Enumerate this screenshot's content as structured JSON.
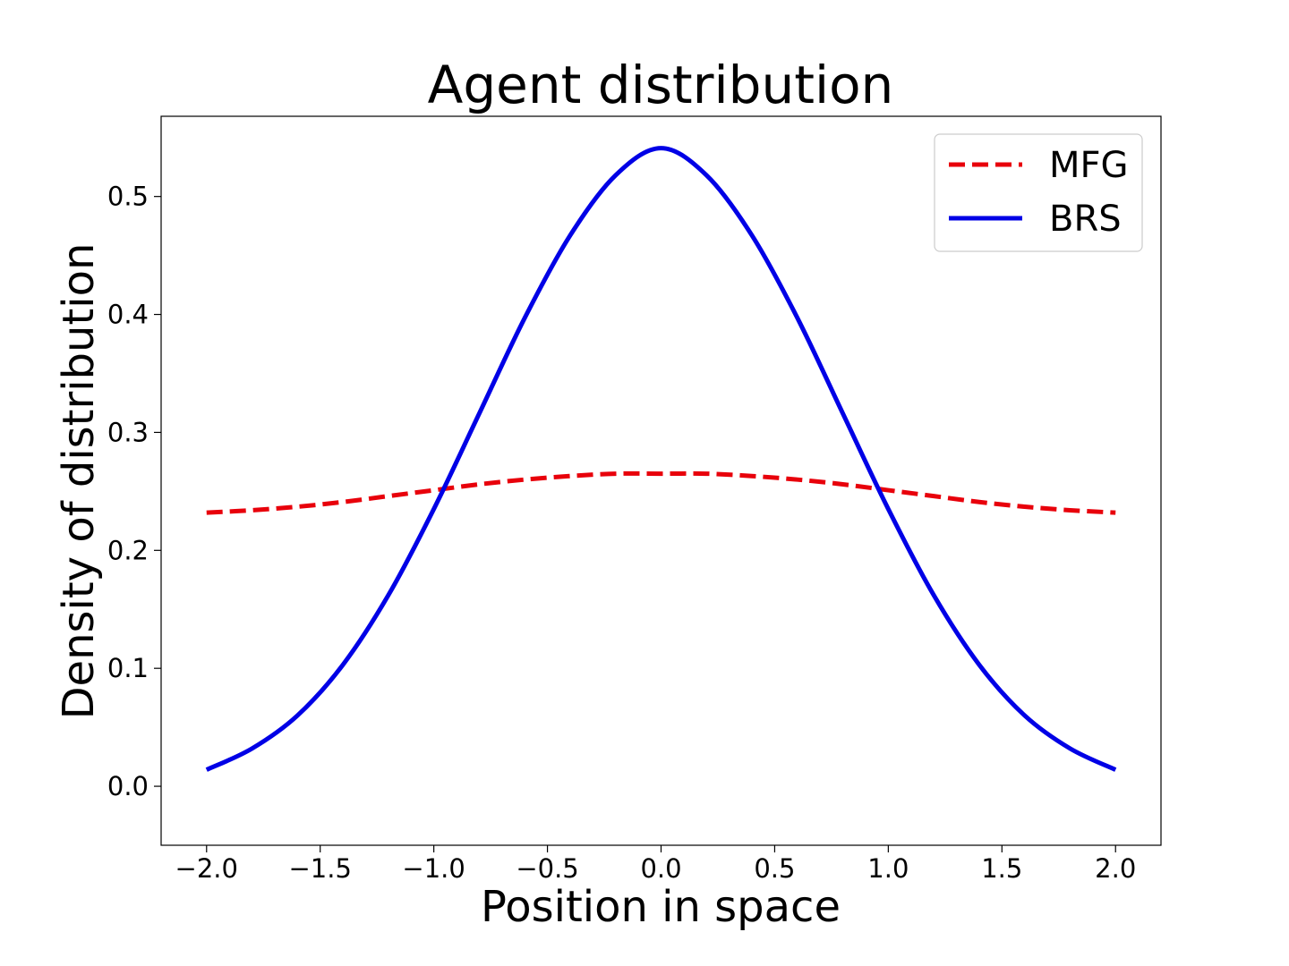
{
  "chart_data": {
    "type": "line",
    "title": "Agent distribution",
    "xlabel": "Position in space",
    "ylabel": "Density of distribution",
    "xlim": [
      -2.2,
      2.2
    ],
    "ylim": [
      -0.05,
      0.568
    ],
    "x_ticks": [
      "−2.0",
      "−1.5",
      "−1.0",
      "−0.5",
      "0.0",
      "0.5",
      "1.0",
      "1.5",
      "2.0"
    ],
    "x_tick_values": [
      -2.0,
      -1.5,
      -1.0,
      -0.5,
      0.0,
      0.5,
      1.0,
      1.5,
      2.0
    ],
    "y_ticks": [
      "0.0",
      "0.1",
      "0.2",
      "0.3",
      "0.4",
      "0.5"
    ],
    "y_tick_values": [
      0.0,
      0.1,
      0.2,
      0.3,
      0.4,
      0.5
    ],
    "grid": false,
    "legend_position": "top-right",
    "x": [
      -2.0,
      -1.8,
      -1.6,
      -1.4,
      -1.2,
      -1.0,
      -0.8,
      -0.6,
      -0.4,
      -0.2,
      0.0,
      0.2,
      0.4,
      0.6,
      0.8,
      1.0,
      1.2,
      1.4,
      1.6,
      1.8,
      2.0
    ],
    "series": [
      {
        "name": "MFG",
        "color": "#e8000b",
        "style": "dashed",
        "values": [
          0.232,
          0.234,
          0.237,
          0.241,
          0.246,
          0.251,
          0.256,
          0.26,
          0.263,
          0.265,
          0.265,
          0.265,
          0.263,
          0.26,
          0.256,
          0.251,
          0.246,
          0.241,
          0.237,
          0.234,
          0.232
        ]
      },
      {
        "name": "BRS",
        "color": "#0000e6",
        "style": "solid",
        "values": [
          0.014,
          0.032,
          0.06,
          0.103,
          0.162,
          0.235,
          0.316,
          0.397,
          0.467,
          0.518,
          0.541,
          0.518,
          0.467,
          0.397,
          0.316,
          0.235,
          0.162,
          0.103,
          0.06,
          0.032,
          0.014
        ]
      }
    ]
  }
}
